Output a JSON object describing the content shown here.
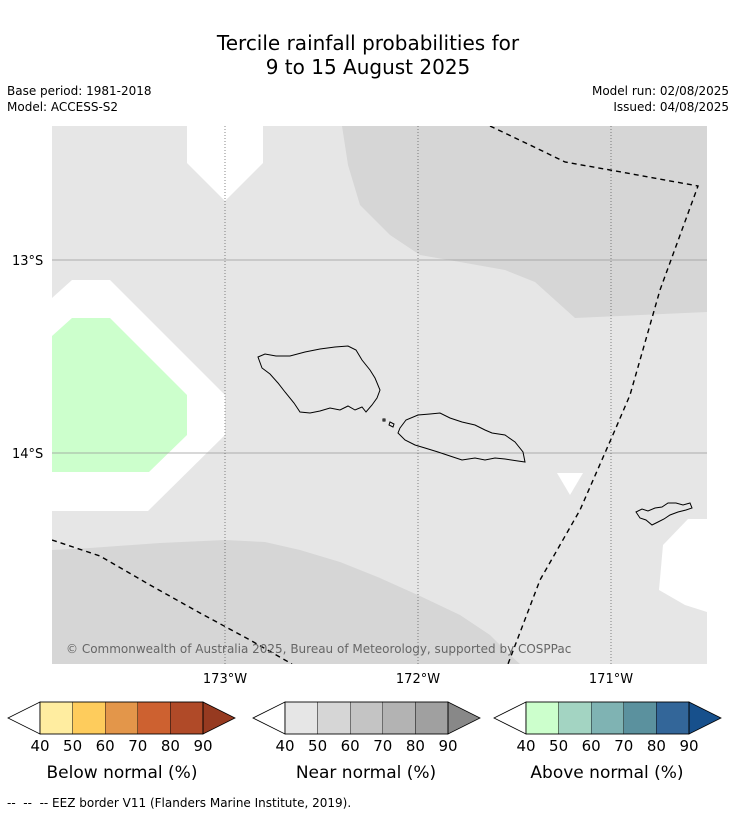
{
  "header": {
    "title_line1": "Tercile rainfall probabilities for",
    "title_line2": "9 to 15 August 2025",
    "base_period": "Base period: 1981-2018",
    "model": "Model: ACCESS-S2",
    "model_run": "Model run: 02/08/2025",
    "issued": "Issued: 04/08/2025"
  },
  "map": {
    "latitude_labels": [
      "13°S",
      "14°S"
    ],
    "longitude_labels": [
      "173°W",
      "172°W",
      "171°W"
    ],
    "copyright": "© Commonwealth of Australia 2025, Bureau of Meteorology, supported by COSPPac",
    "colors": {
      "near_normal_40": "#e6e6e6",
      "near_normal_50": "#d6d6d6",
      "above_normal_40": "#ccffcc",
      "no_signal": "#ffffff",
      "eez_line": "#000000"
    }
  },
  "colorbars": [
    {
      "label": "Below normal (%)",
      "ticks": [
        "40",
        "50",
        "60",
        "70",
        "80",
        "90"
      ],
      "colors": [
        "#ffeda0",
        "#fecc5c",
        "#e3964a",
        "#cd6130",
        "#b04a28",
        "#963a20"
      ]
    },
    {
      "label": "Near normal (%)",
      "ticks": [
        "40",
        "50",
        "60",
        "70",
        "80",
        "90"
      ],
      "colors": [
        "#e6e6e6",
        "#d6d6d6",
        "#c4c4c4",
        "#b3b3b3",
        "#a0a0a0",
        "#888888"
      ]
    },
    {
      "label": "Above normal (%)",
      "ticks": [
        "40",
        "50",
        "60",
        "70",
        "80",
        "90"
      ],
      "colors": [
        "#ccffcc",
        "#a3d4c2",
        "#7fb3b3",
        "#5b919e",
        "#336699",
        "#17508c"
      ]
    }
  ],
  "footer": {
    "legend_line": "--  --  -- EEZ border V11 (Flanders Marine Institute, 2019)."
  }
}
